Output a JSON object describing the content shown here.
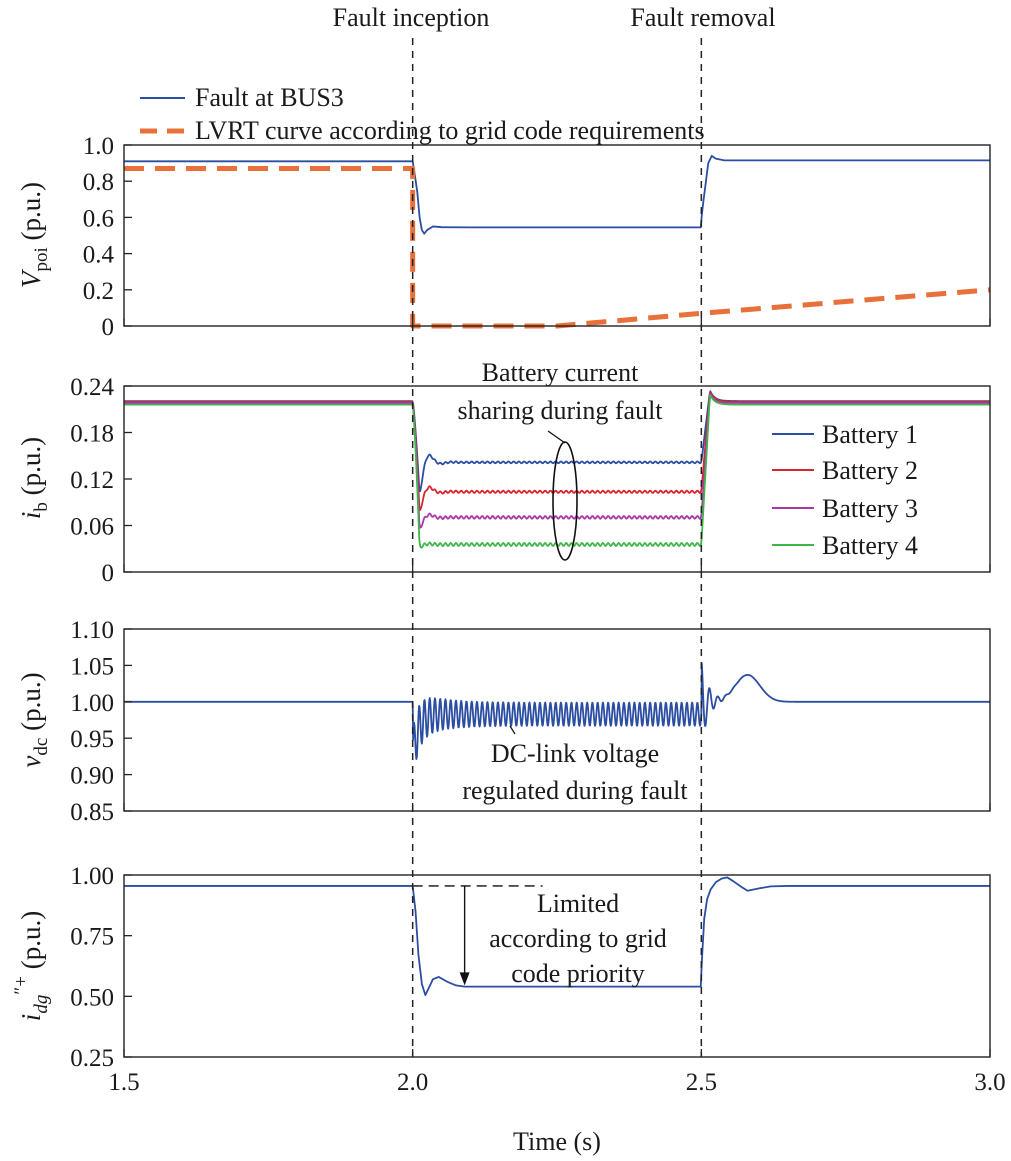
{
  "events": [
    {
      "t": 2.0,
      "label": "Fault inception"
    },
    {
      "t": 2.5,
      "label": "Fault removal"
    }
  ],
  "x_axis": {
    "label": "Time (s)",
    "range": [
      1.5,
      3.0
    ],
    "ticks": [
      1.5,
      2.0,
      2.5,
      3.0
    ],
    "tick_labels": [
      "1.5",
      "2.0",
      "2.5",
      "3.0"
    ]
  },
  "colors": {
    "fault_bus3": "#2b4ea2",
    "lvrt": "#e8703a",
    "battery1": "#2b4ea2",
    "battery2": "#d8242b",
    "battery3": "#a83aa8",
    "battery4": "#3fb54a",
    "annotation": "#1a1a1a"
  },
  "chart_data": [
    {
      "type": "line",
      "id": "vpoi",
      "ylabel_main": "V",
      "ylabel_sub": "poi",
      "ylabel_unit": " (p.u.)",
      "xlim": [
        1.5,
        3.0
      ],
      "ylim": [
        0,
        1.0
      ],
      "yticks": [
        0,
        0.2,
        0.4,
        0.6,
        0.8,
        1.0
      ],
      "ytick_labels": [
        "0",
        "0.2",
        "0.4",
        "0.6",
        "0.8",
        "1.0"
      ],
      "legend": {
        "placement": "top-left",
        "entries": [
          "Fault at BUS3",
          "LVRT curve according to grid code requirements"
        ]
      },
      "series": [
        {
          "name": "Fault at BUS3",
          "style": "solid",
          "color_key": "fault_bus3",
          "x": [
            1.5,
            2.0,
            2.003,
            2.008,
            2.012,
            2.016,
            2.02,
            2.025,
            2.035,
            2.05,
            2.1,
            2.3,
            2.499,
            2.501,
            2.504,
            2.508,
            2.512,
            2.518,
            2.525,
            2.54,
            2.6,
            3.0
          ],
          "y": [
            0.91,
            0.91,
            0.85,
            0.74,
            0.6,
            0.53,
            0.51,
            0.53,
            0.55,
            0.546,
            0.545,
            0.545,
            0.545,
            0.62,
            0.7,
            0.8,
            0.9,
            0.94,
            0.925,
            0.915,
            0.915,
            0.915
          ]
        },
        {
          "name": "LVRT curve according to grid code requirements",
          "style": "dashed",
          "color_key": "lvrt",
          "x": [
            1.5,
            2.0,
            2.0,
            2.25,
            2.5,
            3.0
          ],
          "y": [
            0.87,
            0.87,
            0.0,
            0.0,
            0.07,
            0.2
          ]
        }
      ]
    },
    {
      "type": "line",
      "id": "ib",
      "ylabel_main": "i",
      "ylabel_sub": "b",
      "ylabel_unit": " (p.u.)",
      "xlim": [
        1.5,
        3.0
      ],
      "ylim": [
        0,
        0.24
      ],
      "yticks": [
        0,
        0.06,
        0.12,
        0.18,
        0.24
      ],
      "ytick_labels": [
        "0",
        "0.06",
        "0.12",
        "0.18",
        "0.24"
      ],
      "legend": {
        "placement": "right",
        "entries": [
          "Battery 1",
          "Battery 2",
          "Battery 3",
          "Battery 4"
        ]
      },
      "annotation": {
        "lines": [
          "Battery current",
          "sharing during fault"
        ]
      },
      "series": [
        {
          "name": "Battery 1",
          "color_key": "battery1",
          "pre": 0.2205,
          "dip": 0.1,
          "steady": 0.1415,
          "post": 0.2205,
          "peak": 0.234,
          "ripple": 0.0012
        },
        {
          "name": "Battery 2",
          "color_key": "battery2",
          "pre": 0.2195,
          "dip": 0.077,
          "steady": 0.1035,
          "post": 0.2195,
          "peak": 0.233,
          "ripple": 0.0015
        },
        {
          "name": "Battery 3",
          "color_key": "battery3",
          "pre": 0.218,
          "dip": 0.055,
          "steady": 0.0705,
          "post": 0.218,
          "peak": 0.231,
          "ripple": 0.0018
        },
        {
          "name": "Battery 4",
          "color_key": "battery4",
          "pre": 0.216,
          "dip": 0.032,
          "steady": 0.0355,
          "post": 0.216,
          "peak": 0.229,
          "ripple": 0.002
        }
      ]
    },
    {
      "type": "line",
      "id": "vdc",
      "ylabel_main": "v",
      "ylabel_sub": "dc",
      "ylabel_unit": " (p.u.)",
      "xlim": [
        1.5,
        3.0
      ],
      "ylim": [
        0.85,
        1.1
      ],
      "yticks": [
        0.85,
        0.9,
        0.95,
        1.0,
        1.05,
        1.1
      ],
      "ytick_labels": [
        "0.85",
        "0.90",
        "0.95",
        "1.00",
        "1.05",
        "1.10"
      ],
      "annotation": {
        "lines": [
          "DC-link voltage",
          "regulated during fault"
        ]
      },
      "series": [
        {
          "name": "",
          "color_key": "fault_bus3",
          "pre": 1.0,
          "fault_center": 0.983,
          "fault_amplitude": 0.016,
          "oscillation_cycles": 55,
          "initial_dip": 0.925,
          "post_spike": 1.06,
          "post_hump_peak": 1.037,
          "post_hump_t": 2.58
        }
      ]
    },
    {
      "type": "line",
      "id": "idg",
      "ylabel_main": "i",
      "ylabel_sub": "dg",
      "ylabel_sup": "″+",
      "ylabel_unit": " (p.u.)",
      "xlim": [
        1.5,
        3.0
      ],
      "ylim": [
        0.25,
        1.0
      ],
      "yticks": [
        0.25,
        0.5,
        0.75,
        1.0
      ],
      "ytick_labels": [
        "0.25",
        "0.50",
        "0.75",
        "1.00"
      ],
      "annotation": {
        "lines": [
          "Limited",
          "according to grid",
          "code priority"
        ],
        "reference_level": 0.955
      },
      "series": [
        {
          "name": "",
          "color_key": "fault_bus3",
          "x": [
            1.5,
            2.0,
            2.005,
            2.01,
            2.016,
            2.022,
            2.028,
            2.035,
            2.045,
            2.06,
            2.075,
            2.09,
            2.2,
            2.499,
            2.501,
            2.505,
            2.51,
            2.516,
            2.525,
            2.535,
            2.545,
            2.555,
            2.57,
            2.58,
            2.6,
            2.62,
            2.65,
            3.0
          ],
          "y": [
            0.955,
            0.955,
            0.85,
            0.67,
            0.55,
            0.505,
            0.535,
            0.57,
            0.58,
            0.56,
            0.545,
            0.54,
            0.54,
            0.54,
            0.65,
            0.82,
            0.9,
            0.94,
            0.97,
            0.985,
            0.99,
            0.975,
            0.95,
            0.935,
            0.945,
            0.953,
            0.955,
            0.955
          ]
        }
      ]
    }
  ]
}
